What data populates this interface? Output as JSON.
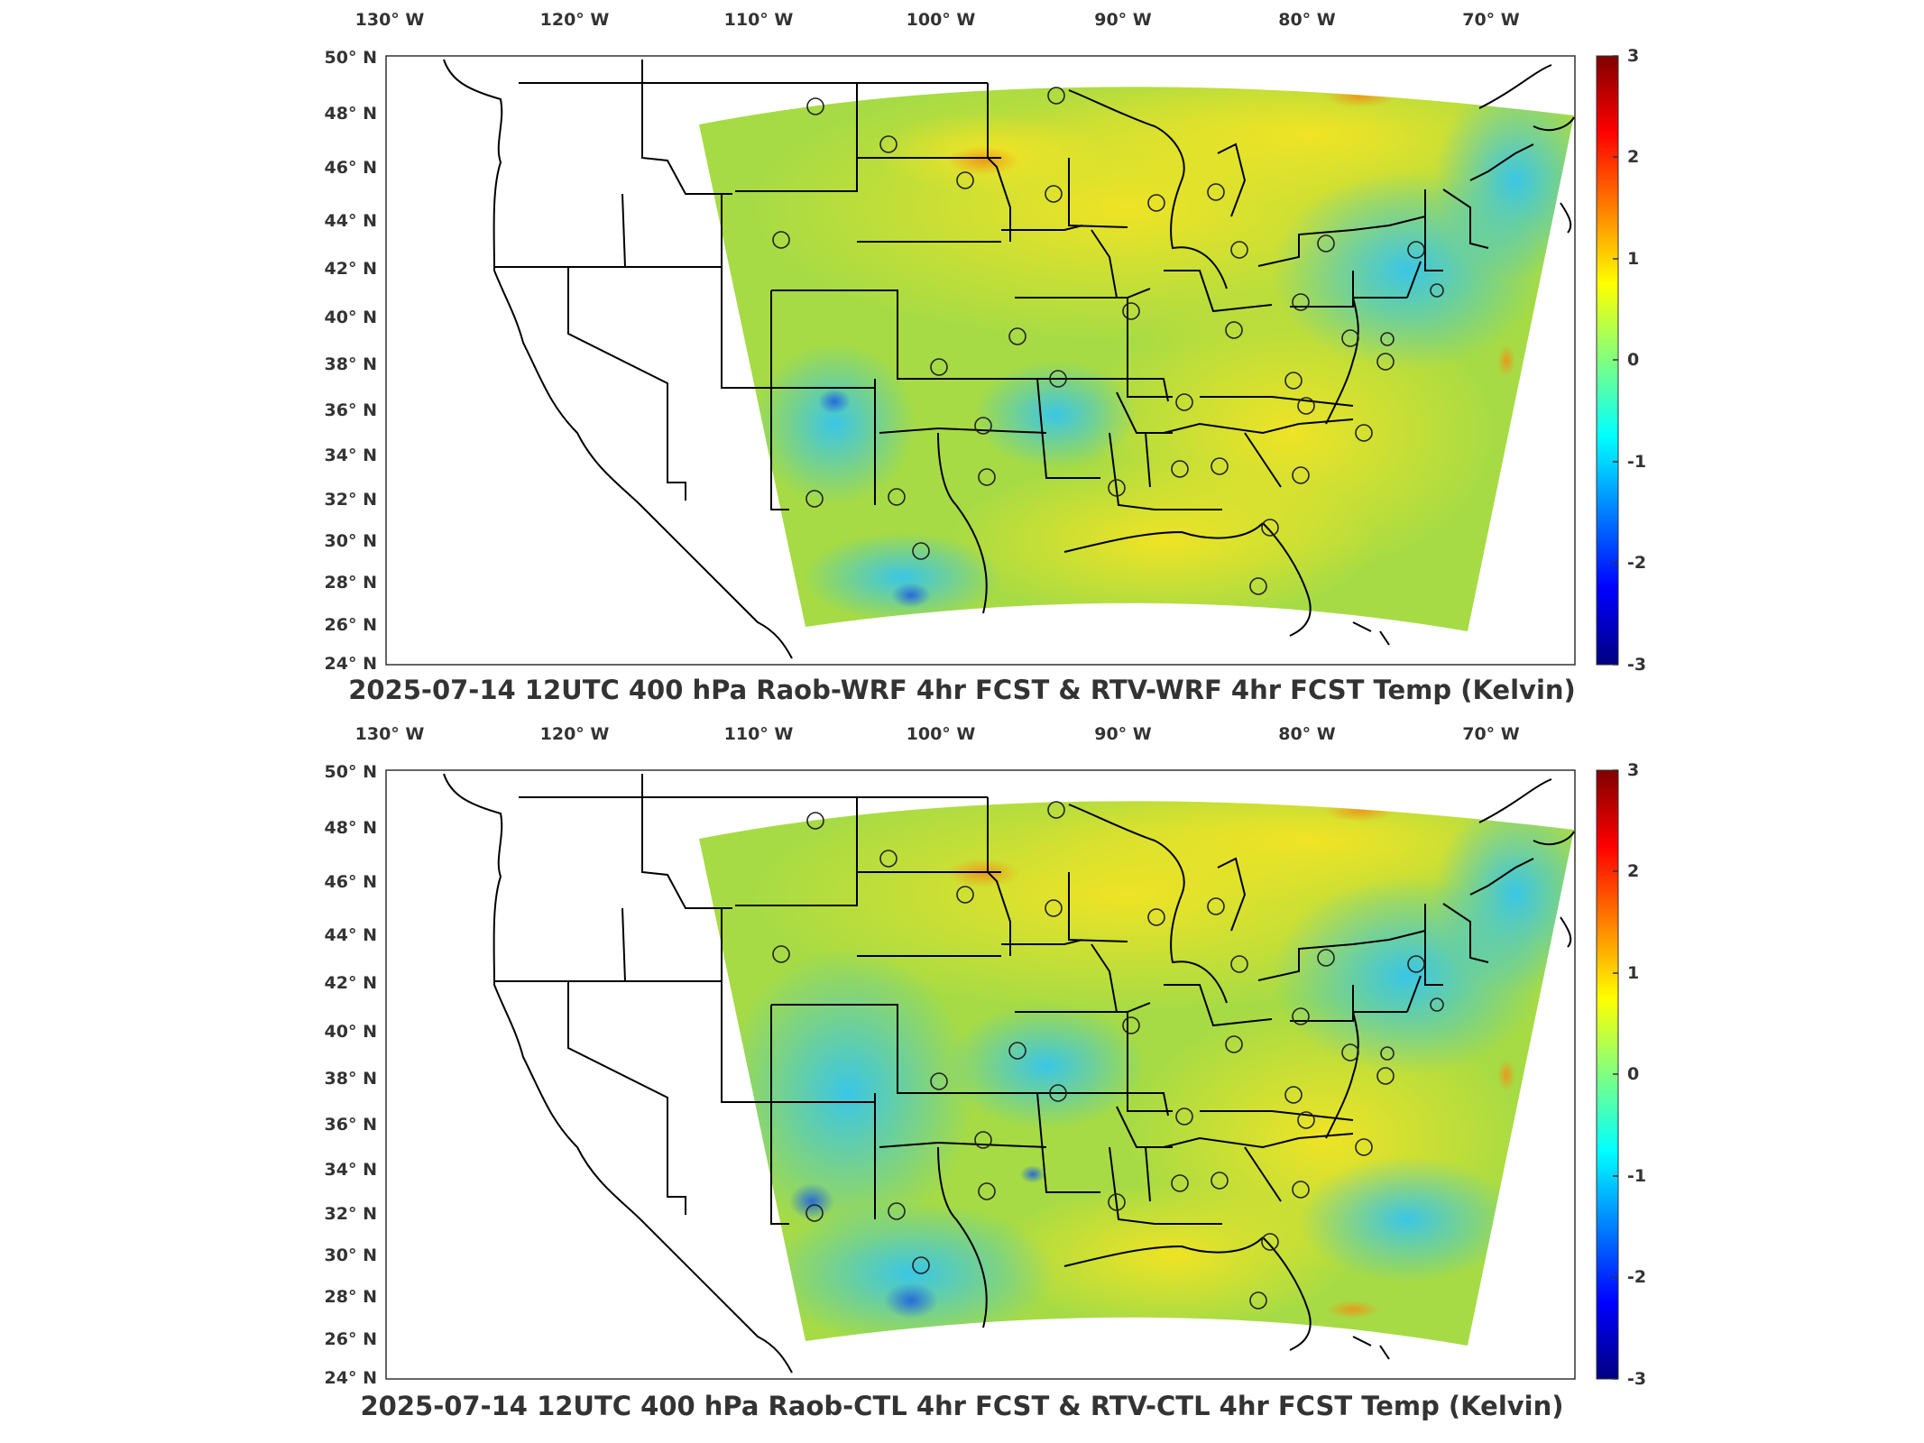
{
  "panels": [
    {
      "title": "2025-07-14 12UTC 400 hPa Raob-WRF 4hr FCST & RTV-WRF 4hr FCST Temp (Kelvin)",
      "lon_ticks": [
        "130° W",
        "120° W",
        "110° W",
        "100° W",
        "90° W",
        "80° W",
        "70° W"
      ],
      "lat_ticks": [
        "50° N",
        "48° N",
        "46° N",
        "44° N",
        "42° N",
        "40° N",
        "38° N",
        "36° N",
        "34° N",
        "32° N",
        "30° N",
        "28° N",
        "26° N",
        "24° N"
      ],
      "colorbar_ticks": [
        "3",
        "2",
        "1",
        "0",
        "-1",
        "-2",
        "-3"
      ]
    },
    {
      "title": "2025-07-14 12UTC 400 hPa Raob-CTL 4hr FCST & RTV-CTL 4hr FCST Temp (Kelvin)",
      "lon_ticks": [
        "130° W",
        "120° W",
        "110° W",
        "100° W",
        "90° W",
        "80° W",
        "70° W"
      ],
      "lat_ticks": [
        "50° N",
        "48° N",
        "46° N",
        "44° N",
        "42° N",
        "40° N",
        "38° N",
        "36° N",
        "34° N",
        "32° N",
        "30° N",
        "28° N",
        "26° N",
        "24° N"
      ],
      "colorbar_ticks": [
        "3",
        "2",
        "1",
        "0",
        "-1",
        "-2",
        "-3"
      ]
    }
  ],
  "map": {
    "projection": "equidistant cylindrical",
    "colormap": "jet",
    "colorbar_range": [
      -3,
      3
    ],
    "raob_marker": "open circle"
  },
  "colors": {
    "warm": "#f0e020",
    "neutral": "#9bd84a",
    "cool": "#3cc8e8",
    "very_cold": "#1a4cd8",
    "very_warm": "#e88a18",
    "borders": "#000000"
  }
}
